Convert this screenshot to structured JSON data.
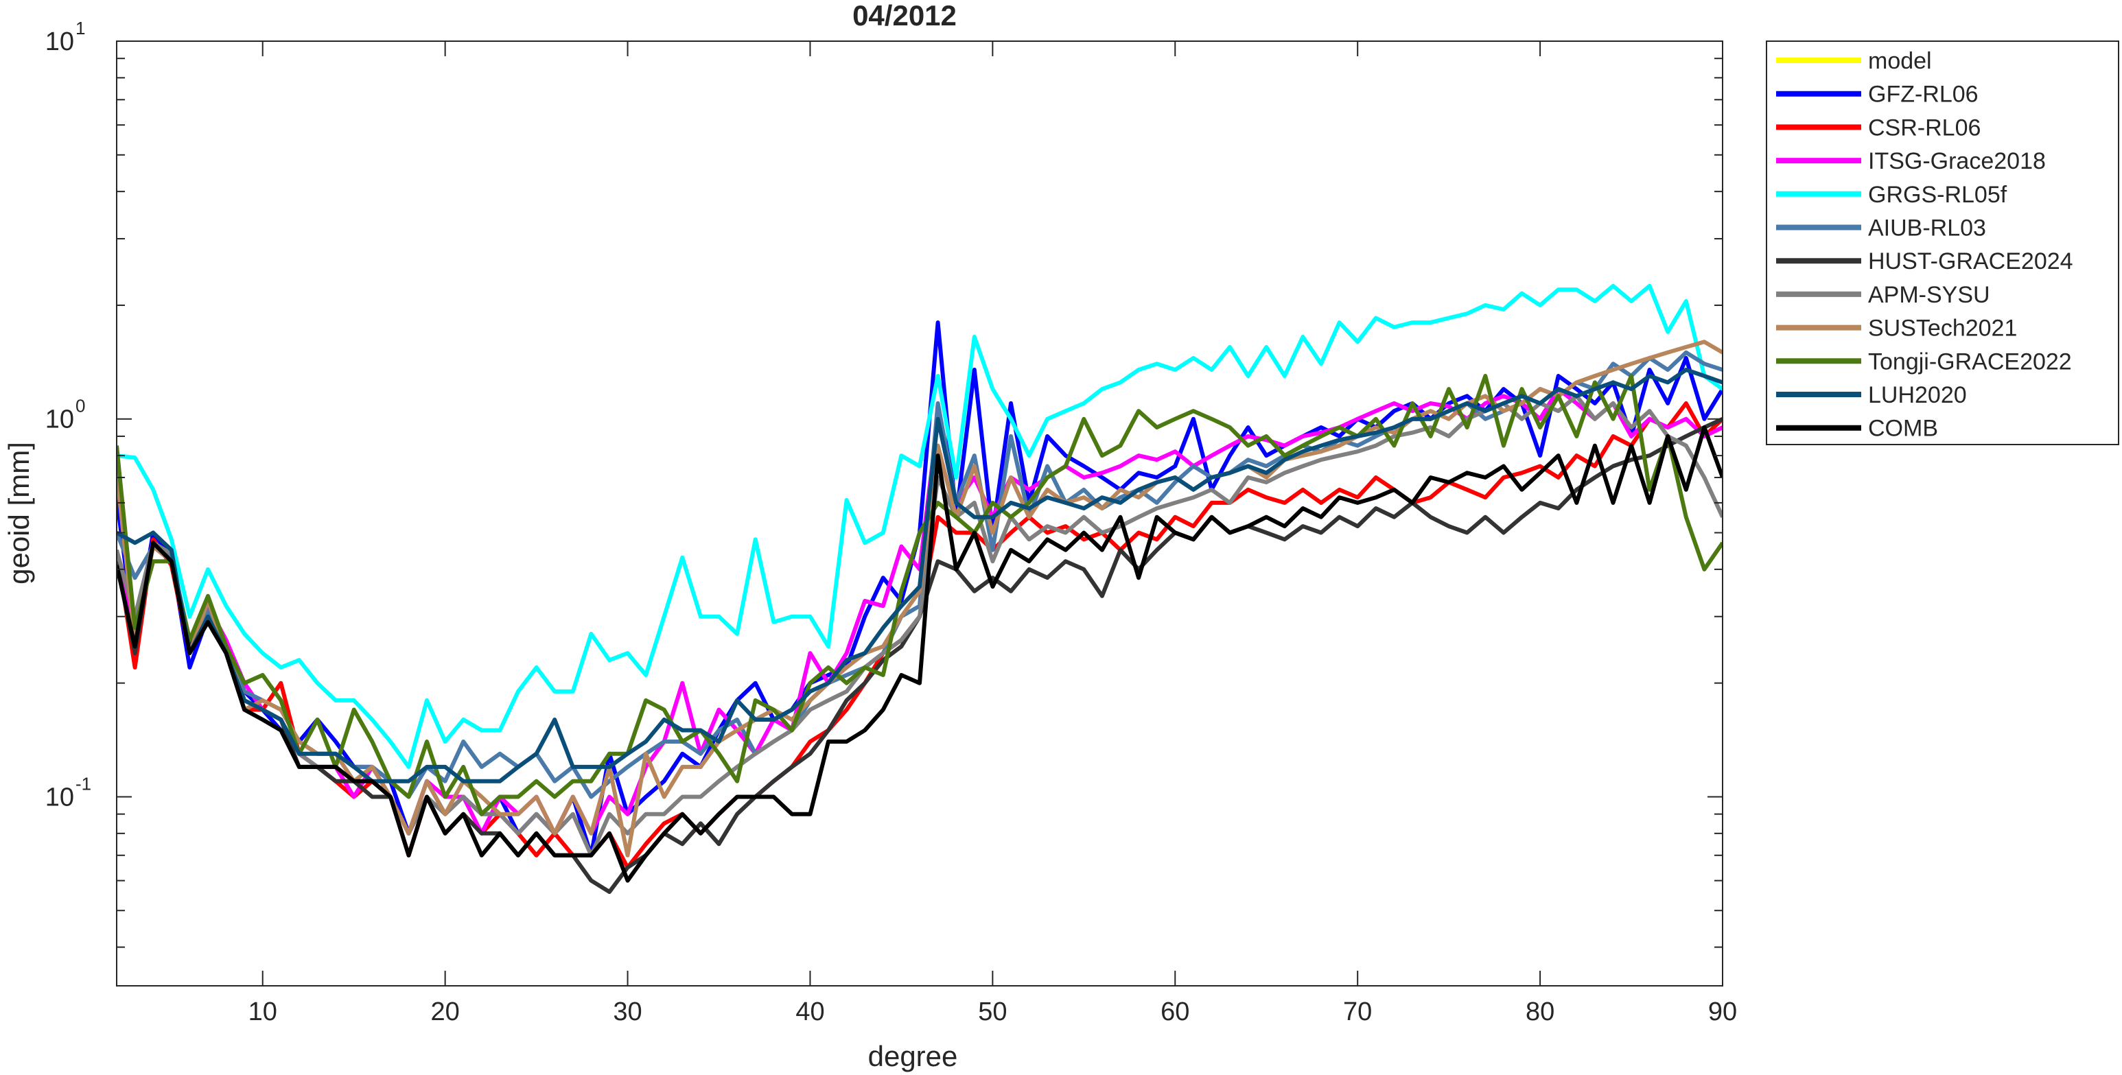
{
  "chart_data": {
    "type": "line",
    "title": "04/2012",
    "xlabel": "degree",
    "ylabel": "geoid [mm]",
    "xlim": [
      2,
      90
    ],
    "ylim": [
      0.0316,
      10
    ],
    "yscale": "log",
    "grid": false,
    "legend_position": "outside-top-right",
    "x_ticks": [
      10,
      20,
      30,
      40,
      50,
      60,
      70,
      80,
      90
    ],
    "y_ticks": [
      {
        "value": 0.1,
        "base": "10",
        "exp": "-1"
      },
      {
        "value": 1,
        "base": "10",
        "exp": "0"
      },
      {
        "value": 10,
        "base": "10",
        "exp": "1"
      }
    ],
    "x_start": 2,
    "series": [
      {
        "name": "model",
        "color": "#ffff00",
        "values": []
      },
      {
        "name": "GFZ-RL06",
        "color": "#0000ff",
        "values": [
          0.62,
          0.26,
          0.5,
          0.43,
          0.22,
          0.3,
          0.25,
          0.19,
          0.17,
          0.15,
          0.14,
          0.16,
          0.14,
          0.12,
          0.12,
          0.11,
          0.08,
          0.11,
          0.09,
          0.1,
          0.09,
          0.1,
          0.08,
          0.09,
          0.08,
          0.1,
          0.07,
          0.13,
          0.09,
          0.1,
          0.11,
          0.13,
          0.12,
          0.15,
          0.18,
          0.2,
          0.16,
          0.17,
          0.2,
          0.21,
          0.22,
          0.3,
          0.38,
          0.33,
          0.5,
          1.8,
          0.55,
          1.35,
          0.5,
          1.1,
          0.6,
          0.9,
          0.8,
          0.75,
          0.7,
          0.65,
          0.72,
          0.7,
          0.75,
          1.0,
          0.65,
          0.8,
          0.95,
          0.8,
          0.85,
          0.9,
          0.95,
          0.9,
          1.0,
          0.95,
          1.05,
          1.1,
          1.0,
          1.1,
          1.15,
          1.05,
          1.2,
          1.1,
          0.8,
          1.3,
          1.2,
          1.1,
          1.25,
          0.9,
          1.35,
          1.1,
          1.45,
          1.0,
          1.2
        ]
      },
      {
        "name": "CSR-RL06",
        "color": "#ff0000",
        "values": [
          0.45,
          0.22,
          0.48,
          0.41,
          0.24,
          0.31,
          0.24,
          0.17,
          0.17,
          0.2,
          0.13,
          0.12,
          0.11,
          0.1,
          0.11,
          0.1,
          0.07,
          0.1,
          0.08,
          0.09,
          0.08,
          0.09,
          0.08,
          0.07,
          0.08,
          0.07,
          0.07,
          0.08,
          0.065,
          0.075,
          0.085,
          0.09,
          0.08,
          0.09,
          0.1,
          0.1,
          0.11,
          0.12,
          0.14,
          0.15,
          0.17,
          0.2,
          0.24,
          0.26,
          0.3,
          0.55,
          0.5,
          0.5,
          0.45,
          0.5,
          0.55,
          0.5,
          0.52,
          0.48,
          0.5,
          0.45,
          0.5,
          0.48,
          0.55,
          0.52,
          0.6,
          0.6,
          0.65,
          0.62,
          0.6,
          0.65,
          0.6,
          0.65,
          0.62,
          0.7,
          0.65,
          0.6,
          0.62,
          0.68,
          0.65,
          0.62,
          0.7,
          0.72,
          0.75,
          0.7,
          0.8,
          0.75,
          0.9,
          0.85,
          1.0,
          0.95,
          1.1,
          0.9,
          1.0
        ]
      },
      {
        "name": "ITSG-Grace2018",
        "color": "#ff00ff",
        "values": [
          0.44,
          0.27,
          0.46,
          0.42,
          0.25,
          0.32,
          0.26,
          0.2,
          0.17,
          0.16,
          0.13,
          0.12,
          0.12,
          0.1,
          0.12,
          0.1,
          0.08,
          0.11,
          0.1,
          0.1,
          0.08,
          0.1,
          0.09,
          0.1,
          0.08,
          0.1,
          0.08,
          0.1,
          0.09,
          0.12,
          0.14,
          0.2,
          0.13,
          0.17,
          0.15,
          0.13,
          0.16,
          0.15,
          0.24,
          0.2,
          0.24,
          0.33,
          0.32,
          0.46,
          0.4,
          1.0,
          0.6,
          0.7,
          0.55,
          0.7,
          0.65,
          0.7,
          0.75,
          0.7,
          0.72,
          0.75,
          0.8,
          0.78,
          0.82,
          0.75,
          0.8,
          0.85,
          0.9,
          0.88,
          0.85,
          0.9,
          0.92,
          0.95,
          1.0,
          1.05,
          1.1,
          1.05,
          1.1,
          1.08,
          1.0,
          1.1,
          1.15,
          1.1,
          1.0,
          1.2,
          1.1,
          1.0,
          1.1,
          0.9,
          1.0,
          0.95,
          1.0,
          0.9,
          0.95
        ]
      },
      {
        "name": "GRGS-RL05f",
        "color": "#00ffff",
        "values": [
          0.8,
          0.79,
          0.65,
          0.48,
          0.3,
          0.4,
          0.32,
          0.27,
          0.24,
          0.22,
          0.23,
          0.2,
          0.18,
          0.18,
          0.16,
          0.14,
          0.12,
          0.18,
          0.14,
          0.16,
          0.15,
          0.15,
          0.19,
          0.22,
          0.19,
          0.19,
          0.27,
          0.23,
          0.24,
          0.21,
          0.3,
          0.43,
          0.3,
          0.3,
          0.27,
          0.48,
          0.29,
          0.3,
          0.3,
          0.25,
          0.61,
          0.47,
          0.5,
          0.8,
          0.75,
          1.3,
          0.7,
          1.65,
          1.2,
          1.0,
          0.8,
          1.0,
          1.05,
          1.1,
          1.2,
          1.25,
          1.35,
          1.4,
          1.35,
          1.45,
          1.35,
          1.55,
          1.3,
          1.55,
          1.3,
          1.65,
          1.4,
          1.8,
          1.6,
          1.85,
          1.75,
          1.8,
          1.8,
          1.85,
          1.9,
          2.0,
          1.95,
          2.15,
          2.0,
          2.2,
          2.2,
          2.05,
          2.25,
          2.05,
          2.25,
          1.7,
          2.05,
          1.3,
          1.2
        ]
      },
      {
        "name": "AIUB-RL03",
        "color": "#4a7aaa",
        "values": [
          0.5,
          0.38,
          0.46,
          0.43,
          0.26,
          0.31,
          0.25,
          0.19,
          0.18,
          0.17,
          0.14,
          0.13,
          0.13,
          0.12,
          0.12,
          0.11,
          0.1,
          0.12,
          0.11,
          0.14,
          0.12,
          0.13,
          0.12,
          0.13,
          0.11,
          0.12,
          0.1,
          0.11,
          0.12,
          0.13,
          0.14,
          0.14,
          0.13,
          0.15,
          0.16,
          0.13,
          0.14,
          0.15,
          0.18,
          0.2,
          0.21,
          0.22,
          0.24,
          0.3,
          0.32,
          1.1,
          0.6,
          0.8,
          0.45,
          0.9,
          0.55,
          0.75,
          0.6,
          0.65,
          0.58,
          0.62,
          0.65,
          0.6,
          0.68,
          0.75,
          0.7,
          0.72,
          0.78,
          0.75,
          0.8,
          0.85,
          0.82,
          0.88,
          0.85,
          0.9,
          0.95,
          1.0,
          1.0,
          1.05,
          1.1,
          1.0,
          1.05,
          1.1,
          1.2,
          1.15,
          1.25,
          1.2,
          1.4,
          1.3,
          1.45,
          1.35,
          1.5,
          1.4,
          1.35
        ]
      },
      {
        "name": "HUST-GRACE2024",
        "color": "#333333",
        "values": [
          0.42,
          0.24,
          0.47,
          0.42,
          0.25,
          0.29,
          0.24,
          0.18,
          0.17,
          0.16,
          0.12,
          0.12,
          0.11,
          0.11,
          0.1,
          0.1,
          0.08,
          0.1,
          0.08,
          0.09,
          0.08,
          0.08,
          0.07,
          0.08,
          0.07,
          0.07,
          0.06,
          0.056,
          0.065,
          0.07,
          0.08,
          0.075,
          0.085,
          0.075,
          0.09,
          0.1,
          0.11,
          0.12,
          0.13,
          0.15,
          0.18,
          0.2,
          0.23,
          0.25,
          0.3,
          0.42,
          0.4,
          0.35,
          0.38,
          0.35,
          0.4,
          0.38,
          0.42,
          0.4,
          0.34,
          0.45,
          0.4,
          0.45,
          0.5,
          0.48,
          0.55,
          0.5,
          0.52,
          0.5,
          0.48,
          0.52,
          0.5,
          0.55,
          0.52,
          0.58,
          0.55,
          0.6,
          0.55,
          0.52,
          0.5,
          0.55,
          0.5,
          0.55,
          0.6,
          0.58,
          0.65,
          0.7,
          0.75,
          0.78,
          0.8,
          0.85,
          0.9,
          0.95,
          1.0
        ]
      },
      {
        "name": "APM-SYSU",
        "color": "#808080",
        "values": [
          0.45,
          0.3,
          0.47,
          0.44,
          0.24,
          0.3,
          0.25,
          0.18,
          0.17,
          0.16,
          0.13,
          0.12,
          0.12,
          0.11,
          0.11,
          0.1,
          0.08,
          0.1,
          0.09,
          0.1,
          0.09,
          0.09,
          0.08,
          0.09,
          0.08,
          0.09,
          0.07,
          0.09,
          0.08,
          0.09,
          0.09,
          0.1,
          0.1,
          0.11,
          0.12,
          0.13,
          0.14,
          0.15,
          0.17,
          0.18,
          0.19,
          0.22,
          0.24,
          0.26,
          0.3,
          0.7,
          0.55,
          0.6,
          0.42,
          0.55,
          0.48,
          0.52,
          0.5,
          0.55,
          0.5,
          0.52,
          0.55,
          0.58,
          0.6,
          0.62,
          0.65,
          0.6,
          0.7,
          0.68,
          0.72,
          0.75,
          0.78,
          0.8,
          0.82,
          0.85,
          0.9,
          0.92,
          0.95,
          0.9,
          1.0,
          1.05,
          1.1,
          1.0,
          1.1,
          1.05,
          1.15,
          1.0,
          1.1,
          0.95,
          1.05,
          0.9,
          0.85,
          0.7,
          0.55
        ]
      },
      {
        "name": "SUSTech2021",
        "color": "#b8865a",
        "values": [
          0.72,
          0.26,
          0.46,
          0.42,
          0.24,
          0.33,
          0.24,
          0.17,
          0.18,
          0.17,
          0.14,
          0.13,
          0.13,
          0.11,
          0.12,
          0.1,
          0.08,
          0.11,
          0.09,
          0.11,
          0.1,
          0.09,
          0.09,
          0.1,
          0.08,
          0.1,
          0.08,
          0.12,
          0.07,
          0.13,
          0.1,
          0.12,
          0.12,
          0.14,
          0.15,
          0.16,
          0.17,
          0.16,
          0.18,
          0.2,
          0.22,
          0.24,
          0.25,
          0.3,
          0.35,
          0.85,
          0.55,
          0.75,
          0.5,
          0.7,
          0.55,
          0.65,
          0.6,
          0.62,
          0.58,
          0.65,
          0.62,
          0.68,
          0.7,
          0.65,
          0.7,
          0.72,
          0.75,
          0.7,
          0.78,
          0.8,
          0.82,
          0.85,
          0.9,
          0.95,
          0.92,
          1.0,
          1.05,
          1.0,
          1.1,
          1.15,
          1.05,
          1.1,
          1.2,
          1.15,
          1.25,
          1.3,
          1.35,
          1.4,
          1.45,
          1.5,
          1.55,
          1.6,
          1.5
        ]
      },
      {
        "name": "Tongji-GRACE2022",
        "color": "#4c7a10",
        "values": [
          0.85,
          0.28,
          0.42,
          0.42,
          0.26,
          0.34,
          0.25,
          0.2,
          0.21,
          0.18,
          0.13,
          0.16,
          0.12,
          0.17,
          0.14,
          0.11,
          0.1,
          0.14,
          0.1,
          0.12,
          0.09,
          0.1,
          0.1,
          0.11,
          0.1,
          0.11,
          0.11,
          0.13,
          0.13,
          0.18,
          0.17,
          0.14,
          0.15,
          0.13,
          0.11,
          0.18,
          0.17,
          0.15,
          0.2,
          0.22,
          0.2,
          0.22,
          0.21,
          0.35,
          0.5,
          0.6,
          0.55,
          0.5,
          0.6,
          0.55,
          0.6,
          0.7,
          0.75,
          1.0,
          0.8,
          0.85,
          1.05,
          0.95,
          1.0,
          1.05,
          1.0,
          0.95,
          0.85,
          0.9,
          0.8,
          0.85,
          0.9,
          0.95,
          0.9,
          1.0,
          0.85,
          1.1,
          0.9,
          1.2,
          0.95,
          1.3,
          0.85,
          1.2,
          0.95,
          1.15,
          0.9,
          1.25,
          1.0,
          1.3,
          0.65,
          0.9,
          0.55,
          0.4,
          0.47
        ]
      },
      {
        "name": "LUH2020",
        "color": "#0a4f7a",
        "values": [
          0.5,
          0.47,
          0.5,
          0.45,
          0.24,
          0.3,
          0.24,
          0.18,
          0.17,
          0.16,
          0.13,
          0.13,
          0.13,
          0.12,
          0.11,
          0.11,
          0.11,
          0.12,
          0.12,
          0.11,
          0.11,
          0.11,
          0.12,
          0.13,
          0.16,
          0.12,
          0.12,
          0.12,
          0.13,
          0.14,
          0.16,
          0.15,
          0.15,
          0.14,
          0.18,
          0.16,
          0.16,
          0.17,
          0.19,
          0.2,
          0.23,
          0.24,
          0.28,
          0.32,
          0.36,
          1.0,
          0.6,
          0.55,
          0.55,
          0.6,
          0.58,
          0.62,
          0.6,
          0.58,
          0.62,
          0.6,
          0.65,
          0.68,
          0.7,
          0.65,
          0.7,
          0.72,
          0.75,
          0.72,
          0.78,
          0.82,
          0.85,
          0.88,
          0.9,
          0.92,
          0.95,
          1.0,
          1.0,
          1.05,
          1.1,
          1.05,
          1.1,
          1.15,
          1.1,
          1.2,
          1.15,
          1.2,
          1.25,
          1.2,
          1.3,
          1.25,
          1.35,
          1.3,
          1.25
        ]
      },
      {
        "name": "COMB",
        "color": "#000000",
        "values": [
          0.41,
          0.25,
          0.47,
          0.42,
          0.24,
          0.29,
          0.24,
          0.17,
          0.16,
          0.15,
          0.12,
          0.12,
          0.12,
          0.11,
          0.11,
          0.1,
          0.07,
          0.1,
          0.08,
          0.09,
          0.07,
          0.08,
          0.07,
          0.08,
          0.07,
          0.07,
          0.07,
          0.08,
          0.06,
          0.07,
          0.08,
          0.09,
          0.08,
          0.09,
          0.1,
          0.1,
          0.1,
          0.09,
          0.09,
          0.14,
          0.14,
          0.15,
          0.17,
          0.21,
          0.2,
          0.8,
          0.4,
          0.5,
          0.36,
          0.45,
          0.42,
          0.48,
          0.45,
          0.5,
          0.45,
          0.55,
          0.38,
          0.55,
          0.5,
          0.48,
          0.55,
          0.5,
          0.52,
          0.55,
          0.52,
          0.58,
          0.55,
          0.62,
          0.6,
          0.62,
          0.65,
          0.6,
          0.7,
          0.68,
          0.72,
          0.7,
          0.75,
          0.65,
          0.72,
          0.8,
          0.6,
          0.85,
          0.6,
          0.85,
          0.6,
          0.9,
          0.65,
          0.95,
          0.7
        ]
      }
    ]
  }
}
